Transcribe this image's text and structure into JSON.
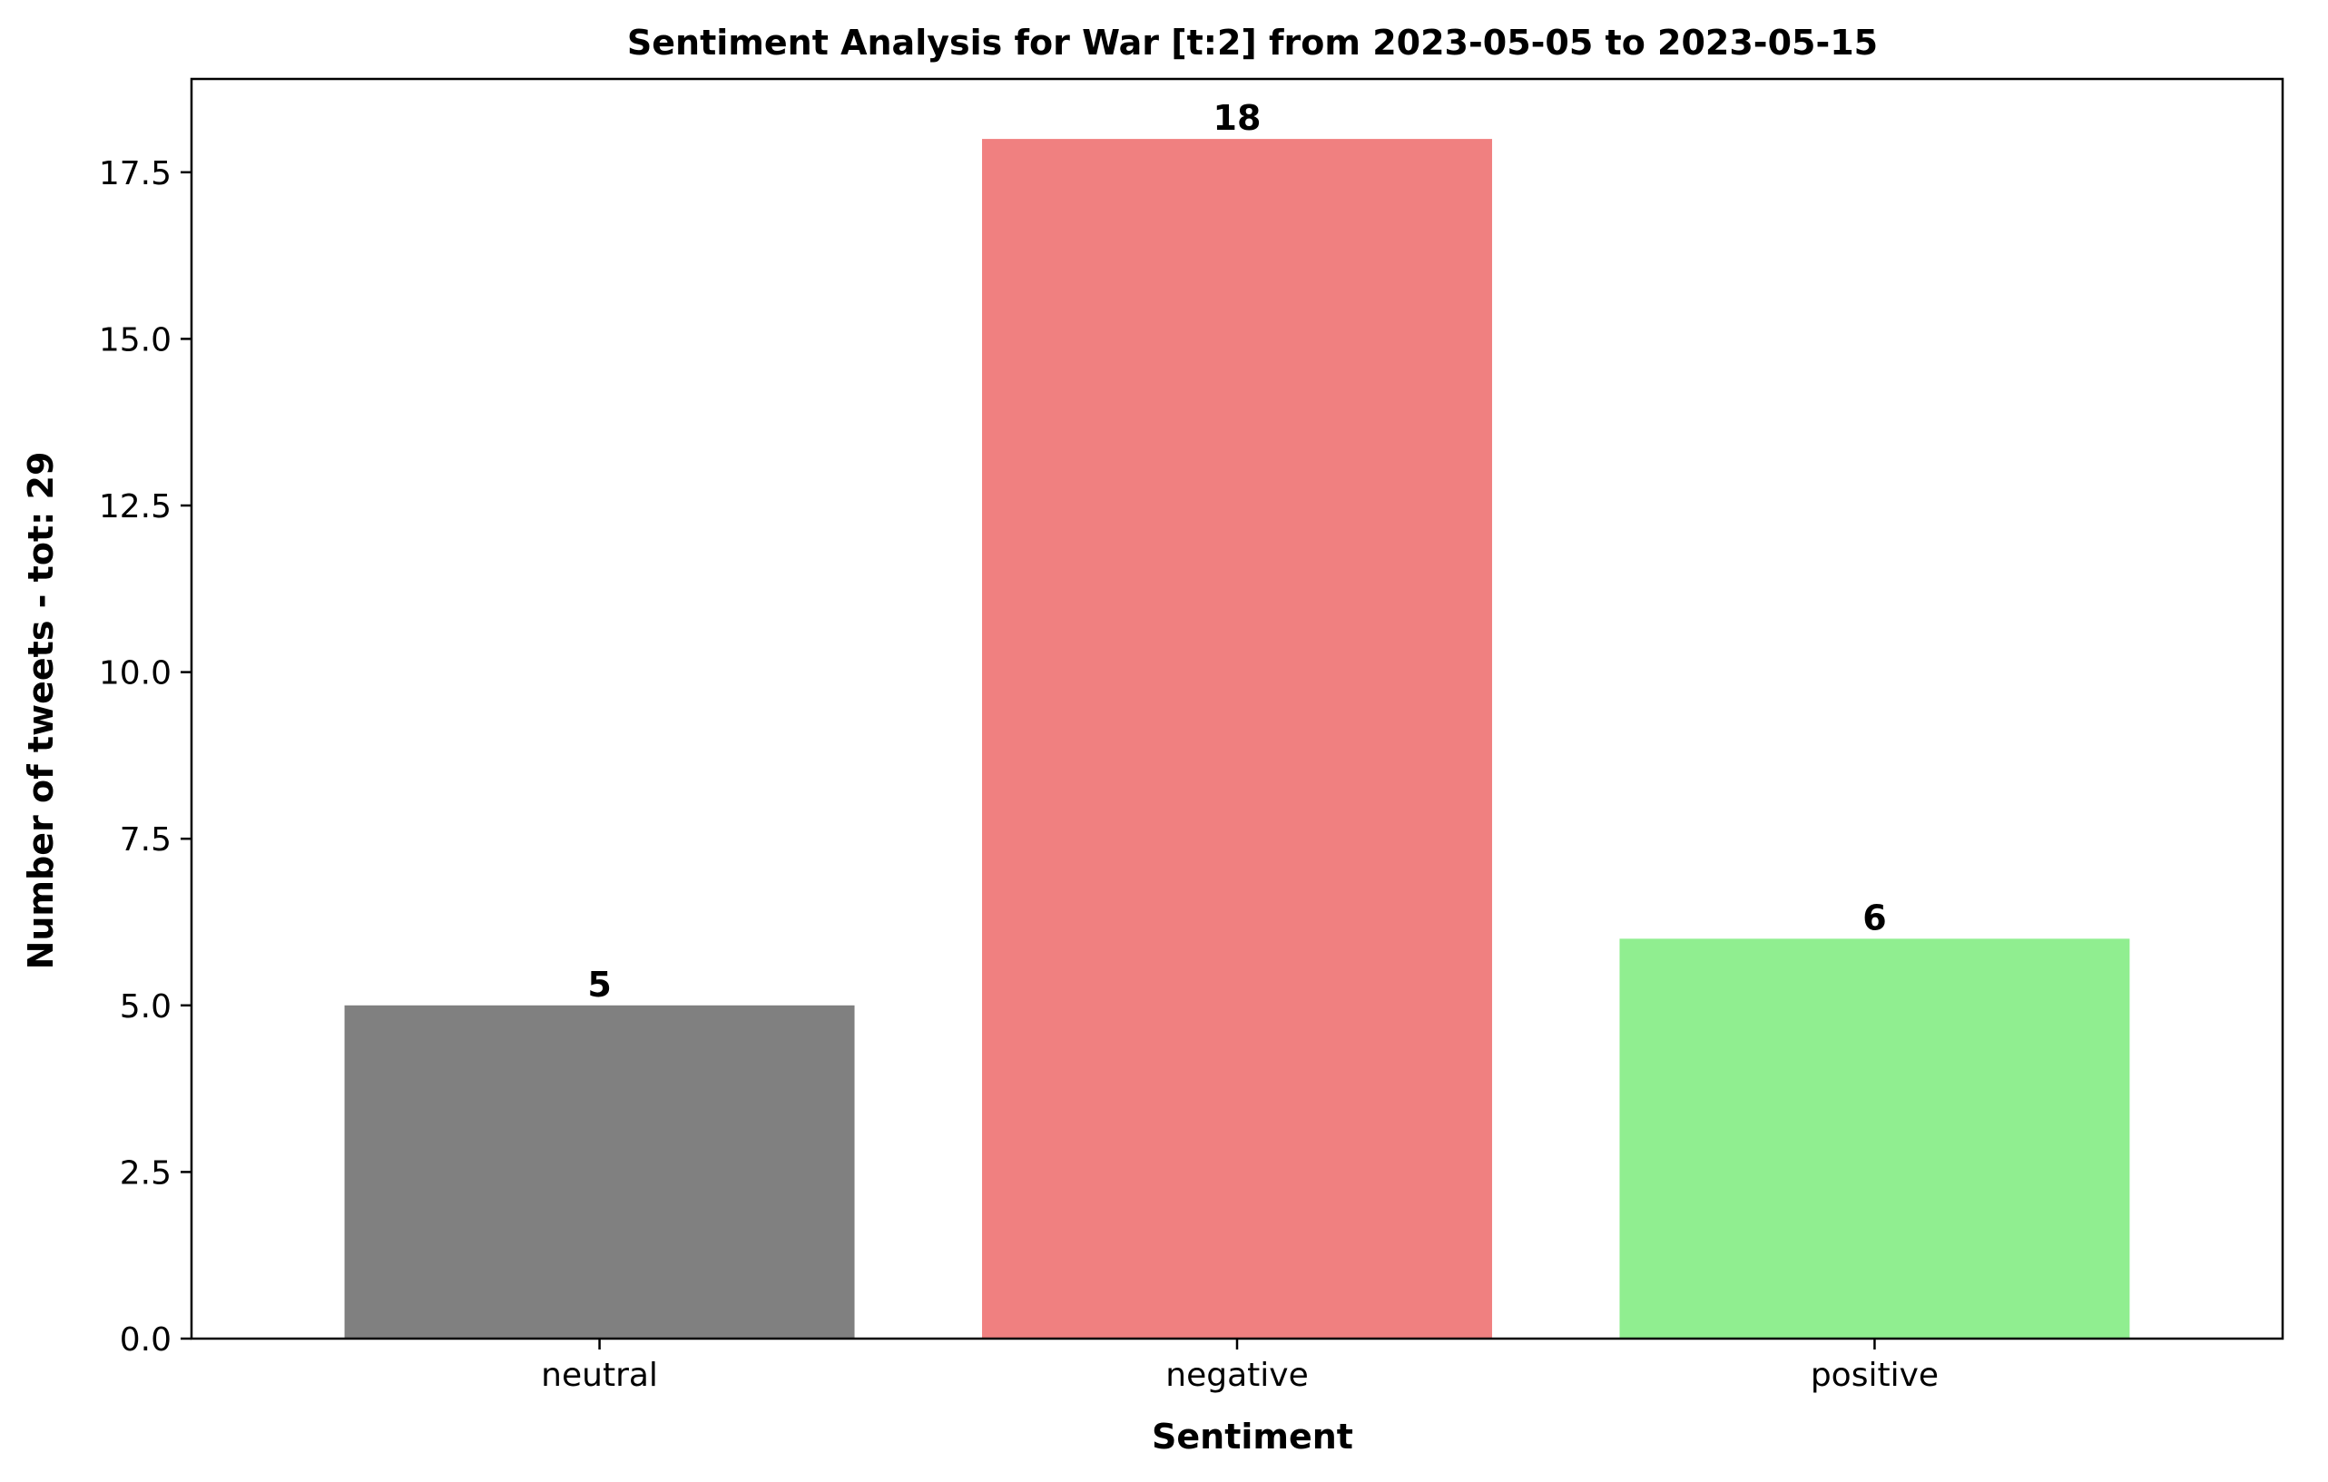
{
  "chart_data": {
    "type": "bar",
    "title": "Sentiment Analysis for War [t:2] from 2023-05-05 to 2023-05-15",
    "xlabel": "Sentiment",
    "ylabel": "Number of tweets - tot: 29",
    "categories": [
      "neutral",
      "negative",
      "positive"
    ],
    "values": [
      5,
      18,
      6
    ],
    "value_labels": [
      "5",
      "18",
      "6"
    ],
    "colors": [
      "#808080",
      "#f08080",
      "#90ee90"
    ],
    "ylim": [
      0,
      18.9
    ],
    "yticks": [
      0,
      2.5,
      5,
      7.5,
      10,
      12.5,
      15,
      17.5
    ],
    "ytick_labels": [
      "0.0",
      "2.5",
      "5.0",
      "7.5",
      "10.0",
      "12.5",
      "15.0",
      "17.5"
    ],
    "grid": false,
    "legend": "none"
  }
}
